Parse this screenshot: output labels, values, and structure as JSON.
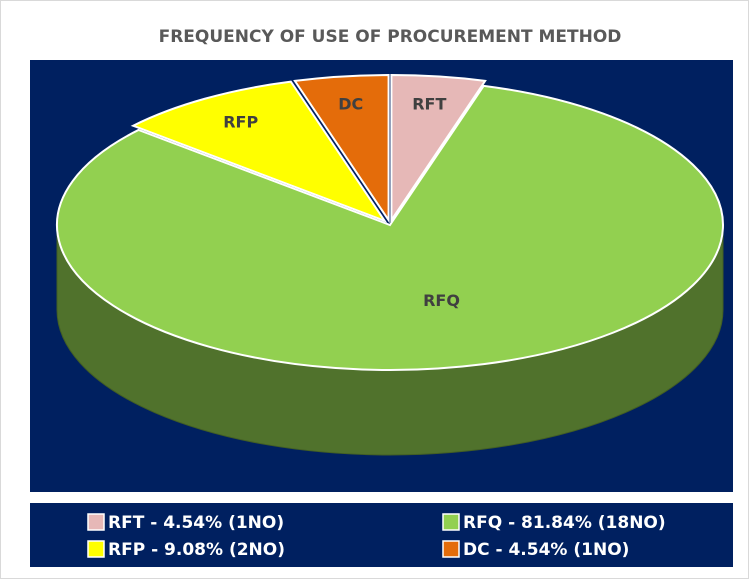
{
  "chart_data": {
    "type": "pie",
    "title": "FREQUENCY OF USE OF PROCUREMENT METHOD",
    "categories": [
      "RFT",
      "RFQ",
      "RFP",
      "DC"
    ],
    "values": [
      4.54,
      81.84,
      9.08,
      4.54
    ],
    "colors": [
      "#e6b8b7",
      "#92d050",
      "#ffff00",
      "#e46c0a"
    ],
    "legend": {
      "labels": [
        "RFT - 4.54% (1NO)",
        "RFQ - 81.84% (18NO)",
        "RFP - 9.08% (2NO)",
        "DC - 4.54% (1NO)"
      ],
      "position": "bottom"
    }
  }
}
